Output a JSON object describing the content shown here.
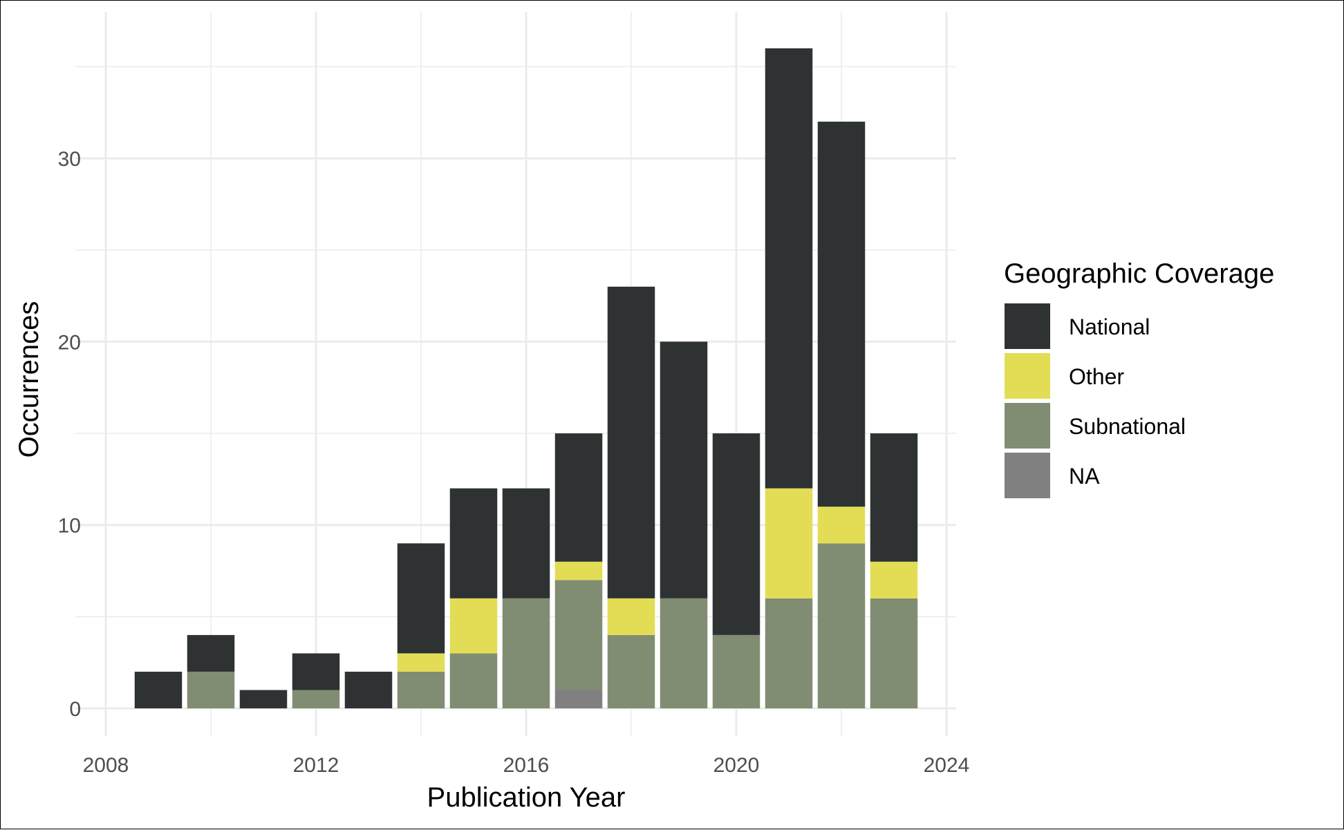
{
  "chart_data": {
    "type": "bar",
    "stacked": true,
    "title": "",
    "xlabel": "Publication Year",
    "ylabel": "Occurrences",
    "xlim": [
      2008,
      2024
    ],
    "ylim": [
      0,
      36
    ],
    "x_ticks": [
      2008,
      2012,
      2016,
      2020,
      2024
    ],
    "y_ticks": [
      0,
      10,
      20,
      30
    ],
    "grid": true,
    "legend": {
      "title": "Geographic Coverage",
      "position": "right",
      "entries": [
        {
          "name": "National",
          "color": "#2f3233"
        },
        {
          "name": "Other",
          "color": "#e3dd55"
        },
        {
          "name": "Subnational",
          "color": "#818d72"
        },
        {
          "name": "NA",
          "color": "#808080"
        }
      ]
    },
    "x": [
      2009,
      2010,
      2011,
      2012,
      2013,
      2014,
      2015,
      2016,
      2017,
      2018,
      2019,
      2020,
      2021,
      2022,
      2023
    ],
    "series": [
      {
        "name": "NA",
        "color": "#808080",
        "values": [
          0,
          0,
          0,
          0,
          0,
          0,
          0,
          0,
          1,
          0,
          0,
          0,
          0,
          0,
          0
        ]
      },
      {
        "name": "Subnational",
        "color": "#818d72",
        "values": [
          0,
          2,
          0,
          1,
          0,
          2,
          3,
          6,
          6,
          4,
          6,
          4,
          6,
          9,
          6
        ]
      },
      {
        "name": "Other",
        "color": "#e3dd55",
        "values": [
          0,
          0,
          0,
          0,
          0,
          1,
          3,
          0,
          1,
          2,
          0,
          0,
          6,
          2,
          2
        ]
      },
      {
        "name": "National",
        "color": "#2f3233",
        "values": [
          2,
          2,
          1,
          2,
          2,
          6,
          6,
          6,
          7,
          17,
          14,
          11,
          24,
          21,
          7
        ]
      }
    ]
  }
}
